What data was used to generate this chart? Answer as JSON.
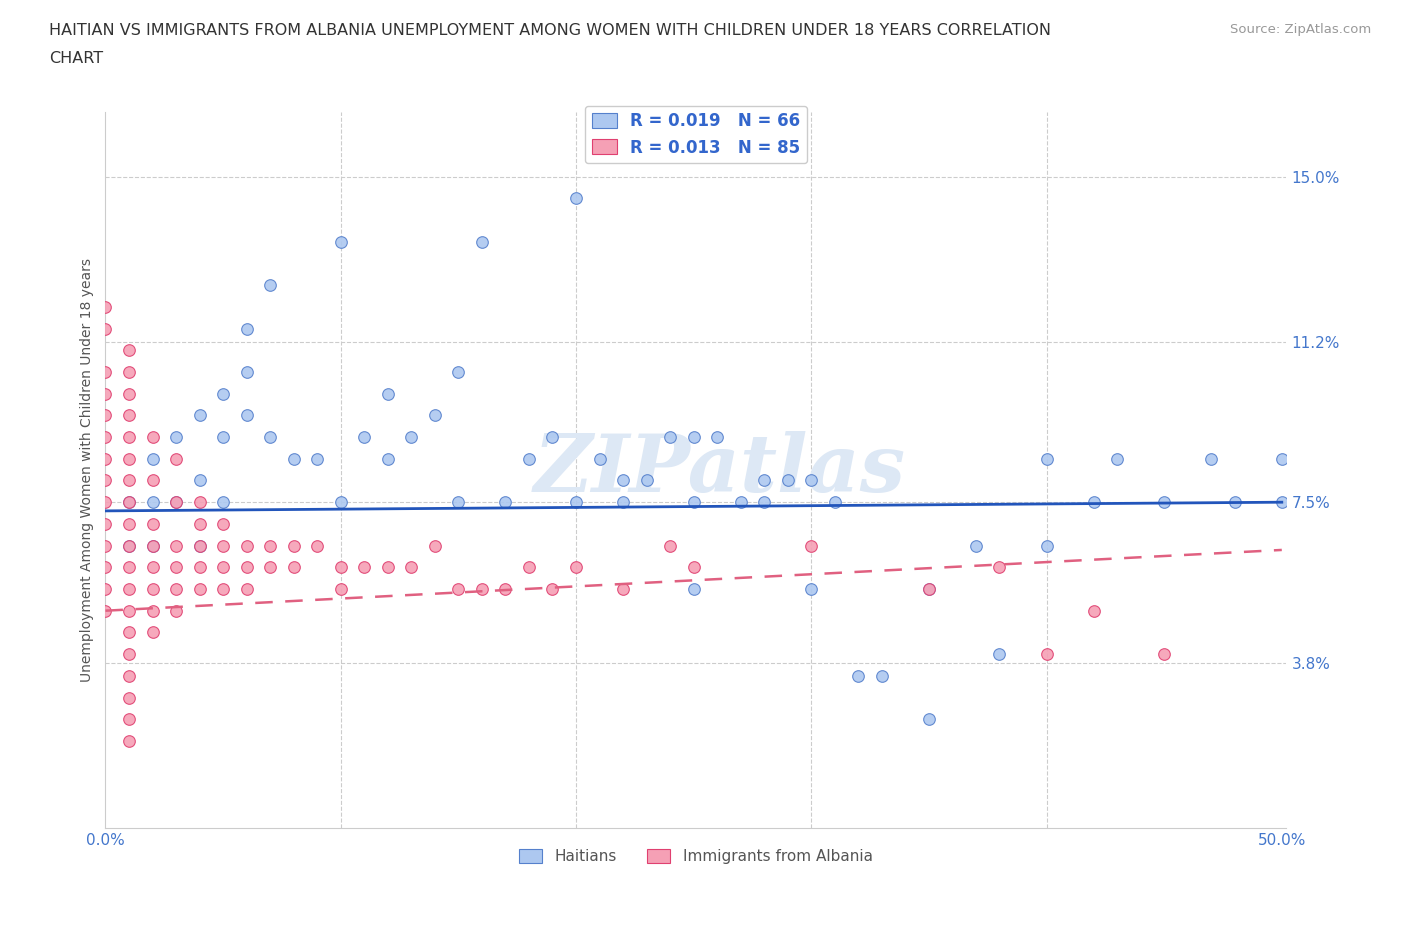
{
  "title_line1": "HAITIAN VS IMMIGRANTS FROM ALBANIA UNEMPLOYMENT AMONG WOMEN WITH CHILDREN UNDER 18 YEARS CORRELATION",
  "title_line2": "CHART",
  "source": "Source: ZipAtlas.com",
  "ylabel": "Unemployment Among Women with Children Under 18 years",
  "xlim": [
    0.0,
    0.5
  ],
  "ylim": [
    0.0,
    0.165
  ],
  "xticks": [
    0.0,
    0.1,
    0.2,
    0.3,
    0.4,
    0.5
  ],
  "xtick_labels": [
    "0.0%",
    "",
    "",
    "",
    "",
    "50.0%"
  ],
  "yticks": [
    0.038,
    0.075,
    0.112,
    0.15
  ],
  "ytick_labels": [
    "3.8%",
    "7.5%",
    "11.2%",
    "15.0%"
  ],
  "haitian_color": "#adc8f0",
  "albania_color": "#f5a0b5",
  "haitian_edge_color": "#5580cc",
  "albania_edge_color": "#e04070",
  "trend_blue": "#2255bb",
  "trend_pink": "#e06080",
  "legend_r1": "R = 0.019",
  "legend_n1": "N = 66",
  "legend_r2": "R = 0.013",
  "legend_n2": "N = 85",
  "watermark": "ZIPatlas",
  "haitian_x": [
    0.01,
    0.01,
    0.02,
    0.02,
    0.02,
    0.03,
    0.03,
    0.04,
    0.04,
    0.04,
    0.05,
    0.05,
    0.05,
    0.06,
    0.06,
    0.06,
    0.07,
    0.07,
    0.08,
    0.09,
    0.1,
    0.1,
    0.11,
    0.12,
    0.12,
    0.13,
    0.14,
    0.15,
    0.15,
    0.16,
    0.17,
    0.18,
    0.19,
    0.2,
    0.2,
    0.21,
    0.22,
    0.22,
    0.23,
    0.24,
    0.25,
    0.25,
    0.26,
    0.27,
    0.28,
    0.28,
    0.29,
    0.3,
    0.31,
    0.32,
    0.33,
    0.35,
    0.37,
    0.38,
    0.4,
    0.42,
    0.43,
    0.45,
    0.47,
    0.48,
    0.5,
    0.5,
    0.25,
    0.3,
    0.35,
    0.4
  ],
  "haitian_y": [
    0.075,
    0.065,
    0.085,
    0.075,
    0.065,
    0.09,
    0.075,
    0.095,
    0.08,
    0.065,
    0.1,
    0.09,
    0.075,
    0.115,
    0.105,
    0.095,
    0.125,
    0.09,
    0.085,
    0.085,
    0.135,
    0.075,
    0.09,
    0.1,
    0.085,
    0.09,
    0.095,
    0.105,
    0.075,
    0.135,
    0.075,
    0.085,
    0.09,
    0.145,
    0.075,
    0.085,
    0.075,
    0.08,
    0.08,
    0.09,
    0.09,
    0.075,
    0.09,
    0.075,
    0.08,
    0.075,
    0.08,
    0.08,
    0.075,
    0.035,
    0.035,
    0.055,
    0.065,
    0.04,
    0.085,
    0.075,
    0.085,
    0.075,
    0.085,
    0.075,
    0.075,
    0.085,
    0.055,
    0.055,
    0.025,
    0.065
  ],
  "albania_x": [
    0.0,
    0.0,
    0.0,
    0.0,
    0.0,
    0.0,
    0.0,
    0.0,
    0.0,
    0.0,
    0.0,
    0.0,
    0.0,
    0.0,
    0.01,
    0.01,
    0.01,
    0.01,
    0.01,
    0.01,
    0.01,
    0.01,
    0.01,
    0.01,
    0.01,
    0.01,
    0.01,
    0.01,
    0.01,
    0.01,
    0.01,
    0.01,
    0.01,
    0.02,
    0.02,
    0.02,
    0.02,
    0.02,
    0.02,
    0.02,
    0.02,
    0.03,
    0.03,
    0.03,
    0.03,
    0.03,
    0.03,
    0.04,
    0.04,
    0.04,
    0.04,
    0.04,
    0.05,
    0.05,
    0.05,
    0.05,
    0.06,
    0.06,
    0.06,
    0.07,
    0.07,
    0.08,
    0.08,
    0.09,
    0.1,
    0.1,
    0.11,
    0.12,
    0.13,
    0.14,
    0.15,
    0.16,
    0.17,
    0.18,
    0.19,
    0.2,
    0.22,
    0.24,
    0.25,
    0.3,
    0.35,
    0.38,
    0.4,
    0.42,
    0.45
  ],
  "albania_y": [
    0.12,
    0.115,
    0.105,
    0.1,
    0.095,
    0.09,
    0.085,
    0.08,
    0.075,
    0.07,
    0.065,
    0.06,
    0.055,
    0.05,
    0.11,
    0.105,
    0.1,
    0.095,
    0.09,
    0.085,
    0.08,
    0.075,
    0.07,
    0.065,
    0.06,
    0.055,
    0.05,
    0.045,
    0.04,
    0.035,
    0.03,
    0.025,
    0.02,
    0.09,
    0.08,
    0.07,
    0.065,
    0.06,
    0.055,
    0.05,
    0.045,
    0.085,
    0.075,
    0.065,
    0.06,
    0.055,
    0.05,
    0.075,
    0.07,
    0.065,
    0.06,
    0.055,
    0.07,
    0.065,
    0.06,
    0.055,
    0.065,
    0.06,
    0.055,
    0.065,
    0.06,
    0.065,
    0.06,
    0.065,
    0.06,
    0.055,
    0.06,
    0.06,
    0.06,
    0.065,
    0.055,
    0.055,
    0.055,
    0.06,
    0.055,
    0.06,
    0.055,
    0.065,
    0.06,
    0.065,
    0.055,
    0.06,
    0.04,
    0.05,
    0.04
  ]
}
